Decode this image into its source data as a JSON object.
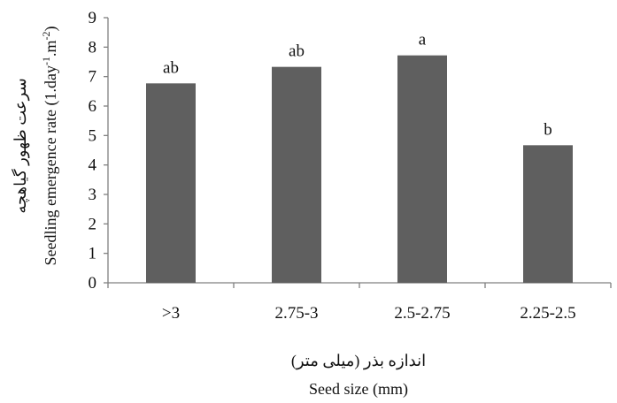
{
  "chart_data": {
    "type": "bar",
    "categories": [
      ">3",
      "2.75-3",
      "2.5-2.75",
      "2.25-2.5"
    ],
    "values": [
      6.77,
      7.33,
      7.72,
      4.67
    ],
    "data_labels": [
      "ab",
      "ab",
      "a",
      "b"
    ],
    "ylim": [
      0,
      9
    ],
    "yticks": [
      0,
      1,
      2,
      3,
      4,
      5,
      6,
      7,
      8,
      9
    ],
    "xlabel_fa": "اندازه بذر (میلی متر)",
    "xlabel": "Seed size (mm)",
    "ylabel_fa": "سرعت ظهور گیاهچه",
    "ylabel": "Seedling emergence rate (1.day-1.m-2)",
    "grid": false,
    "bar_color": "#5f5f5f",
    "axis_color": "#808080"
  }
}
